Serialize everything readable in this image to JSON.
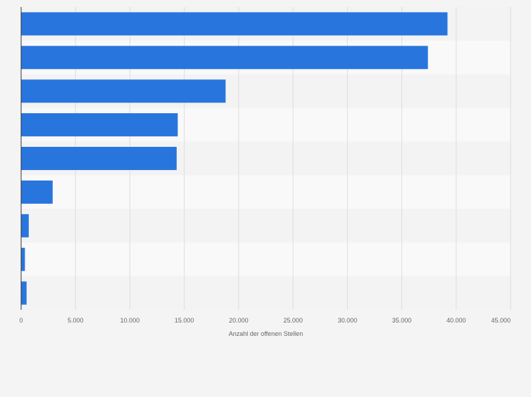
{
  "chart_data": {
    "type": "bar",
    "orientation": "horizontal",
    "categories": [
      "",
      "",
      "",
      "",
      "",
      "",
      "",
      "",
      ""
    ],
    "values": [
      39200,
      37400,
      18800,
      14400,
      14300,
      2900,
      700,
      350,
      500
    ],
    "title": "",
    "xlabel": "Anzahl der offenen Stellen",
    "ylabel": "",
    "xlim": [
      0,
      45000
    ],
    "ticks": [
      0,
      5000,
      10000,
      15000,
      20000,
      25000,
      30000,
      35000,
      40000,
      45000
    ],
    "tick_labels": [
      "0",
      "5.000",
      "10.000",
      "15.000",
      "20.000",
      "25.000",
      "30.000",
      "35.000",
      "40.000",
      "45.000"
    ],
    "grid": "vertical",
    "colors": {
      "bar": "#2876dd",
      "background": "#f4f4f4",
      "band_light": "#f9f9f9",
      "band_dark": "#f3f3f3",
      "grid": "#dddddd",
      "axis": "#333333",
      "tick_label": "#666666"
    }
  }
}
